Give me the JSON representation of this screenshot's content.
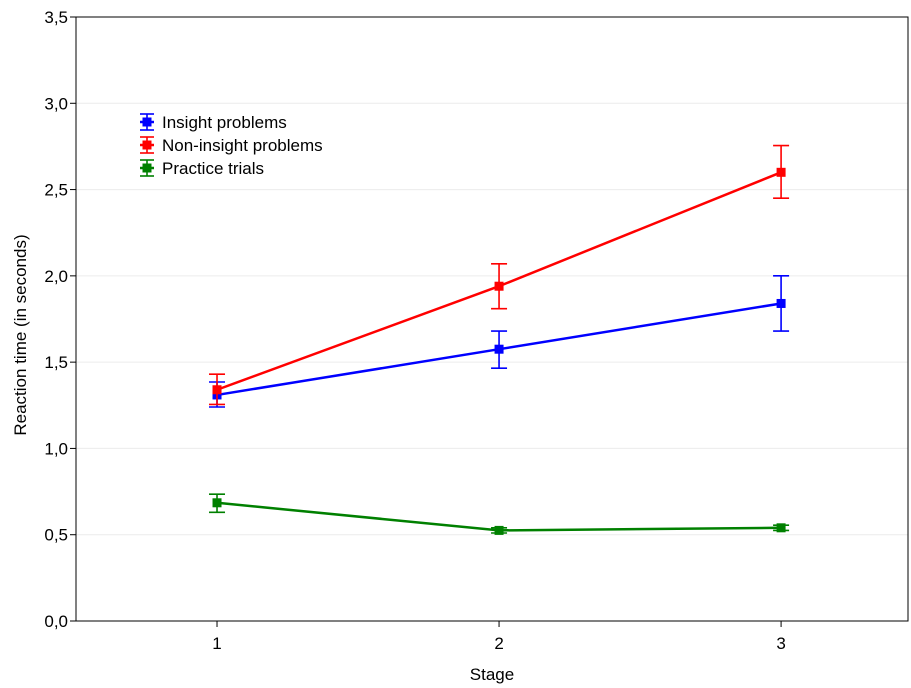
{
  "chart_data": {
    "type": "line",
    "title": "",
    "xlabel": "Stage",
    "ylabel": "Reaction time (in seconds)",
    "x": [
      1,
      2,
      3
    ],
    "x_ticks": [
      "1",
      "2",
      "3"
    ],
    "xlim": [
      0.5,
      3.45
    ],
    "ylim": [
      0,
      3.5
    ],
    "y_ticks": [
      "0,0",
      "0,5",
      "1,0",
      "1,5",
      "2,0",
      "2,5",
      "3,0",
      "3,5"
    ],
    "y_tick_values": [
      0,
      0.5,
      1.0,
      1.5,
      2.0,
      2.5,
      3.0,
      3.5
    ],
    "grid": "horizontal, faint",
    "legend_position": "top-left",
    "series": [
      {
        "name": "Insight problems",
        "color": "#0000ff",
        "values": [
          1.31,
          1.575,
          1.84
        ],
        "err_low": [
          1.24,
          1.465,
          1.68
        ],
        "err_high": [
          1.385,
          1.68,
          2.0
        ]
      },
      {
        "name": "Non-insight problems",
        "color": "#ff0000",
        "values": [
          1.34,
          1.94,
          2.6
        ],
        "err_low": [
          1.255,
          1.81,
          2.45
        ],
        "err_high": [
          1.43,
          2.07,
          2.755
        ]
      },
      {
        "name": "Practice trials",
        "color": "#008000",
        "values": [
          0.685,
          0.525,
          0.54
        ],
        "err_low": [
          0.63,
          0.51,
          0.525
        ],
        "err_high": [
          0.735,
          0.54,
          0.555
        ]
      }
    ]
  }
}
